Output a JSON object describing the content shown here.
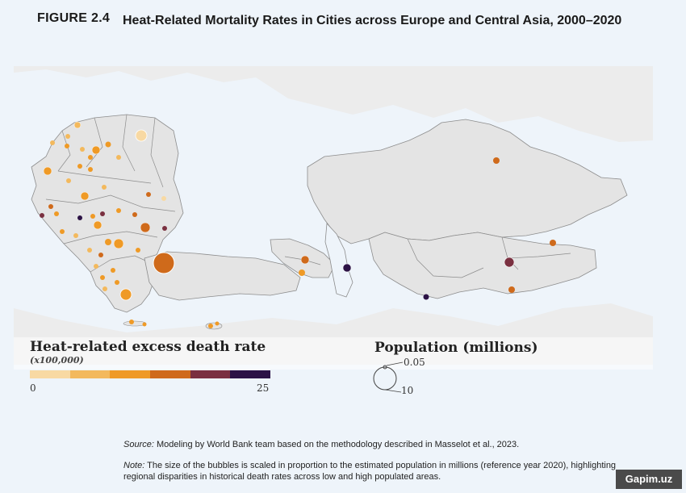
{
  "figure": {
    "number": "FIGURE 2.4",
    "title": "Heat-Related Mortality Rates in Cities across Europe and Central Asia, 2000–2020"
  },
  "legend": {
    "color_title": "Heat-related excess death rate",
    "color_subtitle": "(x100,000)",
    "scale_min": "0",
    "scale_max": "25",
    "scale_colors": [
      "#f8d9a3",
      "#f3b95d",
      "#ef9a26",
      "#cf6a1b",
      "#7a3040",
      "#2c1245"
    ],
    "size_title": "Population (millions)",
    "size_small": "0.05",
    "size_large": "10"
  },
  "colors": {
    "land": "#e5e5e5",
    "border": "#8c8c8c",
    "sea": "#eef4fa"
  },
  "notes": {
    "source_label": "Source:",
    "source_text": " Modeling by World Bank team based on the methodology described in Masselot et al., 2023.",
    "note_label": "Note:",
    "note_text": " The size of the bubbles is scaled in proportion to the estimated population in millions (reference year 2020), highlighting regional disparities in historical death rates across low and high populated areas."
  },
  "watermark": "Gapim.uz"
}
